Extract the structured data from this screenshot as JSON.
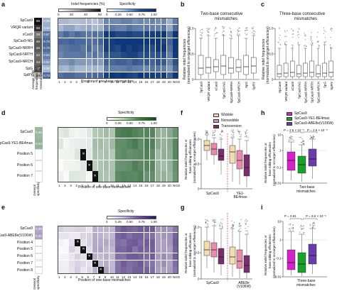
{
  "panel_letters": [
    "a",
    "b",
    "c",
    "d",
    "e",
    "f",
    "g",
    "h",
    "i"
  ],
  "a": {
    "indel_title": "Indel frequencies (%)",
    "indel_ticks": [
      "0",
      "20",
      "40",
      "60"
    ],
    "spec_title": "Specificity",
    "spec_ticks": [
      "0",
      "0.25",
      "0.50",
      "0.75",
      "1.00"
    ],
    "rows": [
      "SpCas9",
      "VRQR variant",
      "xCas9",
      "SpCas9-NG",
      "SpCas9-NRRH",
      "SpCas9-NRTH",
      "SpCas9-NRCH",
      "SpG",
      "SpRY"
    ],
    "avg_indel": [
      "66",
      "58",
      "38",
      "46",
      "46",
      "42",
      "43",
      "47",
      "19"
    ],
    "general_spec": [
      "0.39",
      "0.40",
      "0.67",
      "0.73",
      "0.73",
      "0.64",
      "0.52",
      "0.36",
      "0.73"
    ],
    "positions": [
      "1",
      "2",
      "3",
      "4",
      "5",
      "6",
      "7",
      "8",
      "9",
      "10",
      "11",
      "12",
      "13",
      "14",
      "15",
      "16",
      "17",
      "18",
      "19",
      "20"
    ],
    "ngg": "NGG",
    "xlabel": "Position of one-base mismatches",
    "avg_label": "Average indel frequencies (%)",
    "gen_label": "General specificity"
  },
  "b": {
    "title": [
      "Two-base consecutive",
      "mismatches"
    ],
    "ylabel": [
      "Relative indel frequencies",
      "(normalized to on-target efficiencies)"
    ],
    "yticks": [
      "1.0",
      "0.5",
      "0"
    ],
    "categories": [
      "SpCas9",
      "VRQR variant",
      "xCas9",
      "SpCas9-NG",
      "SpCas9-NRRH",
      "SpCas9-NRCH",
      "SpG",
      "SpRY"
    ]
  },
  "c": {
    "title": [
      "Three-base consecutive",
      "mismatches"
    ],
    "ylabel": [
      "Relative indel frequencies",
      "(normalized to on-target efficiencies)"
    ],
    "yticks": [
      "1.0",
      "0.5",
      "0"
    ],
    "categories": [
      "SpCas9",
      "VRQR variant",
      "xCas9",
      "SpCas9-NG",
      "SpCas9-NRRH",
      "SpCas9-NRTH",
      "SpCas9-NRCH",
      "SpG",
      "SpRY"
    ]
  },
  "d": {
    "spec_title": "Specificity",
    "spec_ticks": [
      "0",
      "0.25",
      "0.50",
      "0.75",
      "1.00"
    ],
    "rows": [
      "SpCas9",
      "SpCas9-YE1-BE4max",
      "Position 5",
      "Position 6",
      "Position 7"
    ],
    "general_spec": [
      "0.40",
      "0.43"
    ],
    "positions": [
      "1",
      "2",
      "3",
      "4",
      "5",
      "6",
      "7",
      "8",
      "9",
      "10",
      "11",
      "12",
      "13",
      "14",
      "15",
      "16",
      "17",
      "18",
      "19",
      "20"
    ],
    "ngg": "NGG",
    "xlabel": "Position of one-base mismatches",
    "gen_label": "General specificity"
  },
  "e": {
    "spec_title": "Specificity",
    "spec_ticks": [
      "0",
      "0.25",
      "0.50",
      "0.75",
      "1.00"
    ],
    "rows": [
      "SpCas9",
      "SpCas9-ABE8e(V106W)",
      "Position 4",
      "Position 5",
      "Position 6",
      "Position 7",
      "Position 8"
    ],
    "general_spec": [
      "0.38",
      "0.40"
    ],
    "positions": [
      "1",
      "2",
      "3",
      "4",
      "5",
      "6",
      "7",
      "8",
      "9",
      "10",
      "11",
      "12",
      "13",
      "14",
      "15",
      "16",
      "17",
      "18",
      "19",
      "20"
    ],
    "ngg": "NGG",
    "xlabel": "Position of one-base mismatches",
    "gen_label": "General specificity"
  },
  "f": {
    "legend": [
      "Wobble",
      "Nonwobble",
      "Transversion"
    ],
    "legend_colors": [
      "#f3dcae",
      "#e98aa8",
      "#7a2e6e"
    ],
    "ylabel": [
      "Relative indel frequencies or",
      "base editing efficiencies",
      "(normalized to on-target efficiencies)"
    ],
    "yticks": [
      "1.0",
      "0.5",
      "0"
    ],
    "groups": [
      "SpCas9",
      "YE1-BE4max"
    ]
  },
  "g": {
    "ylabel": [
      "Relative indel frequencies or",
      "base editing efficiencies",
      "(normalized to on-target efficiencies)"
    ],
    "yticks": [
      "1.0",
      "0.5",
      "0"
    ],
    "groups": [
      "SpCas9",
      "ABE8e (V106W)"
    ]
  },
  "h": {
    "legend": [
      "SpCas9",
      "SpCas9-YE1-BE4max",
      "SpCas9-ABE8e(V106W)"
    ],
    "legend_colors": [
      "#d324c9",
      "#1aa12a",
      "#6a3ca8"
    ],
    "p_left": "P = 2.6 × 10⁻⁵",
    "p_right": "P = 2.6 × 10⁻⁵",
    "ylabel": [
      "Relative indel frequencies or",
      "base editing efficiencies",
      "(normalized to on-target efficiencies)"
    ],
    "yticks": [
      "10",
      "1",
      "0.1",
      "0.01"
    ],
    "xlabel": [
      "Two-base",
      "mismatches"
    ]
  },
  "i": {
    "p_left": "P = 0.91",
    "p_right": "P = 9.6 × 10⁻⁵",
    "ylabel": [
      "Relative indel frequencies or",
      "base editing efficiencies",
      "(normalized to on-target efficiencies)"
    ],
    "yticks": [
      "10",
      "1",
      "0.1",
      "0.01"
    ],
    "xlabel": [
      "Three-base",
      "mismatches"
    ]
  },
  "colors": {
    "blue_dark": "#123a7a",
    "green_dark": "#0e5a1a",
    "purple_dark": "#3e2470",
    "red_dash": "#d0302a"
  }
}
